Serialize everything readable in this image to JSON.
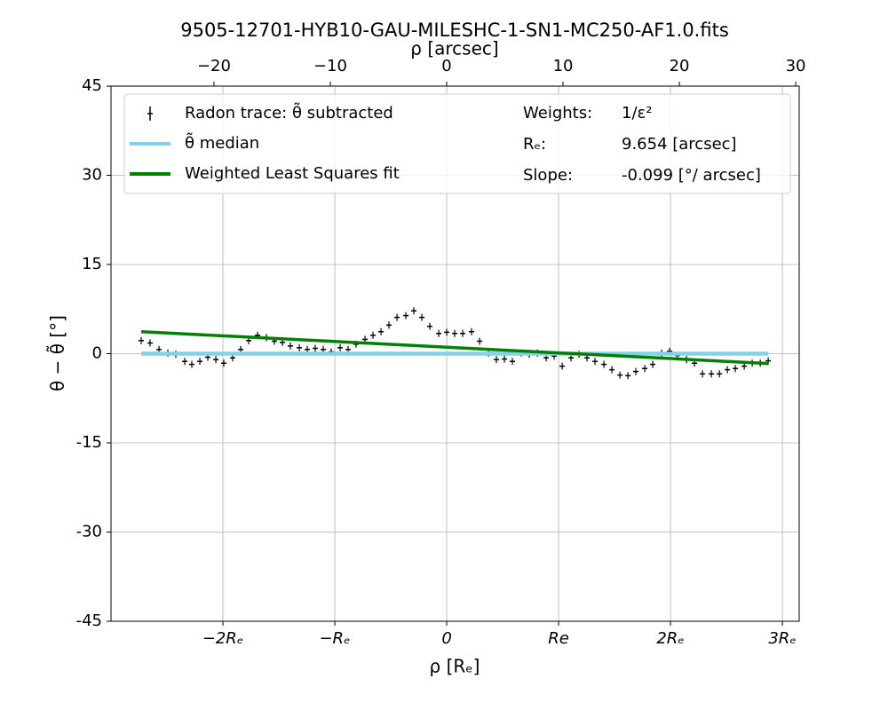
{
  "chart_data": {
    "type": "errorbar",
    "title": "9505-12701-HYB10-GAU-MILESHC-1-SN1-MC250-AF1.0.fits",
    "x_label": "ρ [Rₑ]",
    "x2_label": "ρ [arcsec]",
    "y_label": "θ − θ̃ [°]",
    "xlim": [
      -3.0,
      3.15
    ],
    "xticks": [
      {
        "value": -2,
        "label": "−2Rₑ"
      },
      {
        "value": -1,
        "label": "−Rₑ"
      },
      0,
      {
        "value": 1,
        "label": "Re"
      },
      {
        "value": 2,
        "label": "2Rₑ"
      },
      {
        "value": 3,
        "label": "3Rₑ"
      }
    ],
    "x2lim": [
      -28.85,
      30.3
    ],
    "x2ticks": [
      {
        "value": -20,
        "label": "−20"
      },
      {
        "value": -10,
        "label": "−10"
      },
      0,
      10,
      20,
      30
    ],
    "ylim": [
      -45,
      45
    ],
    "yticks": [
      -45,
      -30,
      -15,
      0,
      15,
      30,
      45
    ],
    "grid": true,
    "legend": "upper center",
    "annotations": [
      {
        "label": "Weights:",
        "text": "1/ε²"
      },
      {
        "label": "Rₑ:",
        "text": "9.654 [arcsec]"
      },
      {
        "label": "Slope:",
        "text": "-0.099 [°/ arcsec]"
      }
    ],
    "series": [
      {
        "name": "Radon trace: θ̃ subtracted",
        "type": "errorbar",
        "color": "#000000",
        "yerr": 0.6,
        "x": [
          -2.73,
          -2.651,
          -2.571,
          -2.492,
          -2.421,
          -2.341,
          -2.278,
          -2.206,
          -2.135,
          -2.063,
          -1.992,
          -1.913,
          -1.841,
          -1.77,
          -1.69,
          -1.611,
          -1.54,
          -1.468,
          -1.397,
          -1.317,
          -1.246,
          -1.175,
          -1.103,
          -1.032,
          -0.952,
          -0.881,
          -0.81,
          -0.73,
          -0.659,
          -0.587,
          -0.516,
          -0.444,
          -0.365,
          -0.294,
          -0.222,
          -0.151,
          -0.071,
          0,
          0.071,
          0.143,
          0.222,
          0.294,
          0.373,
          0.444,
          0.516,
          0.587,
          0.667,
          0.738,
          0.81,
          0.889,
          0.96,
          1.032,
          1.111,
          1.183,
          1.254,
          1.325,
          1.405,
          1.476,
          1.548,
          1.619,
          1.69,
          1.77,
          1.841,
          1.921,
          1.992,
          2.063,
          2.143,
          2.214,
          2.286,
          2.365,
          2.437,
          2.508,
          2.579,
          2.659,
          2.73,
          2.802,
          2.873
        ],
        "values": [
          2.2,
          1.8,
          0.7,
          0.1,
          -0.1,
          -1.3,
          -1.8,
          -1.3,
          -0.6,
          -1.0,
          -1.6,
          -0.7,
          0.7,
          2.2,
          3.1,
          2.7,
          2.1,
          1.9,
          1.3,
          1.0,
          0.7,
          0.9,
          0.7,
          0.3,
          1.0,
          0.7,
          1.6,
          2.4,
          3.1,
          3.7,
          4.8,
          6.1,
          6.4,
          7.2,
          6.1,
          4.6,
          3.4,
          3.6,
          3.4,
          3.4,
          3.7,
          2.1,
          0.1,
          -1.0,
          -0.9,
          -1.3,
          0.1,
          -0.1,
          0.1,
          -0.7,
          -0.4,
          -2.1,
          -0.7,
          -0.1,
          -0.7,
          -1.3,
          -1.8,
          -2.7,
          -3.6,
          -3.7,
          -3.0,
          -2.5,
          -1.8,
          0.1,
          0.4,
          -0.3,
          -1.0,
          -1.6,
          -3.4,
          -3.4,
          -3.4,
          -2.7,
          -2.5,
          -2.1,
          -1.6,
          -1.6,
          -1.2
        ]
      },
      {
        "name": "θ̃ median",
        "type": "line",
        "color": "#87ceeb",
        "x": [
          -2.73,
          2.873
        ],
        "values": [
          0,
          0
        ]
      },
      {
        "name": "Weighted Least Squares fit",
        "type": "line",
        "color": "#008000",
        "x": [
          -2.73,
          2.873
        ],
        "values": [
          3.7,
          -1.66
        ]
      }
    ]
  }
}
